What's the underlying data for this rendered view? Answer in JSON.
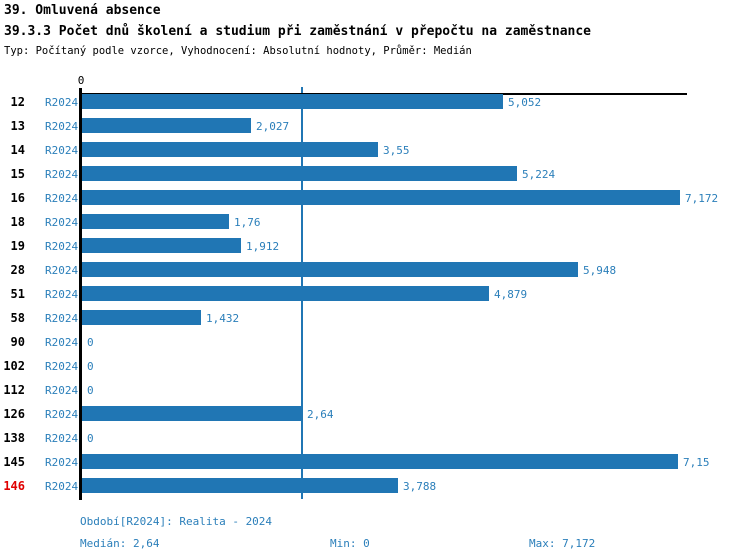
{
  "header": {
    "title1": "39. Omluvená absence",
    "title2": "39.3.3 Počet dnů školení a studium při zaměstnání v přepočtu na zaměstnance",
    "subtitle": "Typ: Počítaný podle vzorce, Vyhodnocení: Absolutní hodnoty, Průměr: Medián"
  },
  "chart_data": {
    "type": "bar",
    "orientation": "horizontal",
    "title": "39.3.3 Počet dnů školení a studium při zaměstnání v přepočtu na zaměstnance",
    "series_label": "R2024",
    "categories": [
      "12",
      "13",
      "14",
      "15",
      "16",
      "18",
      "19",
      "28",
      "51",
      "58",
      "90",
      "102",
      "112",
      "126",
      "138",
      "145",
      "146"
    ],
    "values": [
      5.052,
      2.027,
      3.55,
      5.224,
      7.172,
      1.76,
      1.912,
      5.948,
      4.879,
      1.432,
      0,
      0,
      0,
      2.64,
      0,
      7.15,
      3.788
    ],
    "value_labels": [
      "5,052",
      "2,027",
      "3,55",
      "5,224",
      "7,172",
      "1,76",
      "1,912",
      "5,948",
      "4,879",
      "1,432",
      "0",
      "0",
      "0",
      "2,64",
      "0",
      "7,15",
      "3,788"
    ],
    "axis_tick_label": "0",
    "xlim": [
      0,
      7.26
    ],
    "median_line": 2.64,
    "highlighted_category": "146",
    "legend_position": "none",
    "grid": "median-only",
    "colors": {
      "bar": "#2076b4",
      "label_text": "#2b7fba",
      "highlight_text": "#e00000",
      "axis": "#000000"
    }
  },
  "footer": {
    "period": "Období[R2024]: Realita - 2024",
    "median": "Medián: 2,64",
    "min": "Min: 0",
    "max": "Max: 7,172"
  }
}
